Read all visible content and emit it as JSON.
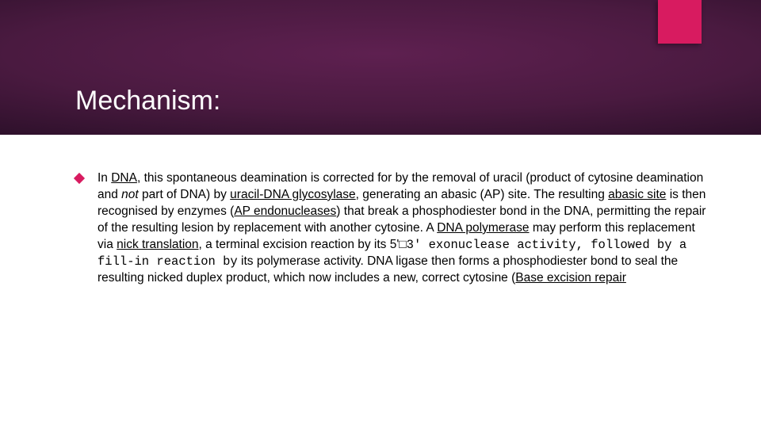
{
  "slide": {
    "title": "Mechanism:",
    "accent_color": "#d81b60",
    "header_gradient_inner": "#5e2050",
    "header_gradient_outer": "#000000",
    "background_color": "#ffffff",
    "title_color": "#ffffff",
    "title_fontsize": 34,
    "body_fontsize": 15.5,
    "body_color": "#000000",
    "body": {
      "t1": "In ",
      "dna": "DNA",
      "t2": ", this spontaneous deamination is corrected for by the removal of uracil (product of cytosine deamination and ",
      "not": "not",
      "t3": " part of DNA) by ",
      "udg": "uracil-DNA glycosylase",
      "t4": ", generating an abasic (AP) site. The resulting ",
      "abasic": "abasic site",
      "t5": " is then recognised by enzymes (",
      "apendo": "AP endonucleases",
      "t6": ") that break a phosphodiester bond in the DNA, permitting the repair of the resulting lesion by replacement with another cytosine. A ",
      "dnapol": "DNA polymerase",
      "t7": " may perform this replacement via ",
      "nick": "nick translation",
      "t8": ", a terminal excision reaction by its 5'□",
      "mono": "3' exonuclease activity, followed by a fill-in reaction by",
      "t9": " its polymerase activity. DNA ligase then forms a phosphodiester bond to seal the resulting nicked duplex product, which now includes a new, correct cytosine (",
      "ber": "Base excision repair"
    }
  }
}
